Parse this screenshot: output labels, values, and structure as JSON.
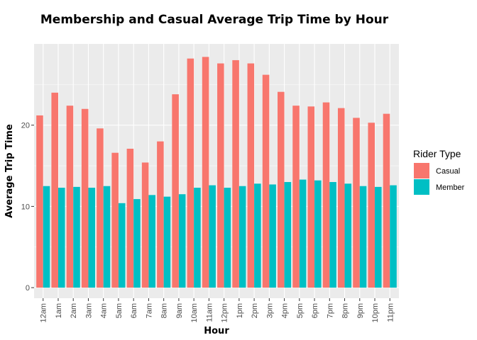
{
  "chart_data": {
    "type": "bar",
    "title": "Membership and Casual Average Trip Time by Hour",
    "xlabel": "Hour",
    "ylabel": "Average Trip Time",
    "categories": [
      "12am",
      "1am",
      "2am",
      "3am",
      "4am",
      "5am",
      "6am",
      "7am",
      "8am",
      "9am",
      "10am",
      "11am",
      "12pm",
      "1pm",
      "2pm",
      "3pm",
      "4pm",
      "5pm",
      "6pm",
      "7pm",
      "8pm",
      "9pm",
      "10pm",
      "11pm"
    ],
    "series": [
      {
        "name": "Casual",
        "color": "#F8766D",
        "values": [
          21.2,
          24.0,
          22.4,
          22.0,
          19.6,
          16.6,
          17.1,
          15.4,
          18.0,
          23.8,
          28.2,
          28.4,
          27.6,
          28.0,
          27.6,
          26.2,
          24.1,
          22.4,
          22.3,
          22.8,
          22.1,
          20.9,
          20.3,
          21.4
        ]
      },
      {
        "name": "Member",
        "color": "#00BFC4",
        "values": [
          12.5,
          12.3,
          12.4,
          12.3,
          12.5,
          10.4,
          10.9,
          11.4,
          11.2,
          11.5,
          12.3,
          12.6,
          12.3,
          12.5,
          12.8,
          12.7,
          13.0,
          13.3,
          13.2,
          13.0,
          12.8,
          12.5,
          12.4,
          12.6
        ]
      }
    ],
    "yticks": [
      0,
      10,
      20
    ],
    "ylim": [
      -1.3,
      30
    ],
    "grid": true,
    "legend": {
      "title": "Rider Type",
      "position": "right"
    }
  }
}
